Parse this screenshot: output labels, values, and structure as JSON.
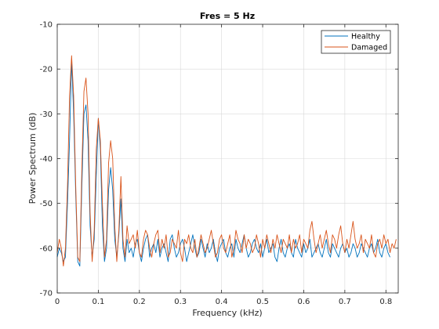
{
  "chart_data": {
    "type": "line",
    "title": "Fres = 5 Hz",
    "xlabel": "Frequency (kHz)",
    "ylabel": "Power Spectrum (dB)",
    "xlim": [
      0,
      0.83
    ],
    "ylim": [
      -70,
      -10
    ],
    "x_ticks": [
      0,
      0.1,
      0.2,
      0.3,
      0.4,
      0.5,
      0.6,
      0.7,
      0.8
    ],
    "x_tick_labels": [
      "0",
      "0.1",
      "0.2",
      "0.3",
      "0.4",
      "0.5",
      "0.6",
      "0.7",
      "0.8"
    ],
    "y_ticks": [
      -70,
      -60,
      -50,
      -40,
      -30,
      -20,
      -10
    ],
    "y_tick_labels": [
      "-70",
      "-60",
      "-50",
      "-40",
      "-30",
      "-20",
      "-10"
    ],
    "grid": true,
    "legend_position": "top-right",
    "x_step": 0.005,
    "series": [
      {
        "name": "Healthy",
        "color": "#0072BD",
        "values": [
          -62,
          -60,
          -61,
          -63,
          -62,
          -50,
          -36,
          -18,
          -30,
          -48,
          -63,
          -64,
          -46,
          -30,
          -28,
          -36,
          -55,
          -62,
          -58,
          -44,
          -31,
          -38,
          -55,
          -63,
          -60,
          -47,
          -42,
          -47,
          -58,
          -62,
          -57,
          -49,
          -60,
          -63,
          -58,
          -61,
          -60,
          -62,
          -59,
          -58,
          -61,
          -63,
          -60,
          -58,
          -57,
          -62,
          -60,
          -59,
          -61,
          -58,
          -62,
          -60,
          -59,
          -61,
          -63,
          -58,
          -57,
          -60,
          -62,
          -61,
          -59,
          -58,
          -60,
          -63,
          -61,
          -59,
          -57,
          -60,
          -62,
          -61,
          -58,
          -60,
          -62,
          -59,
          -61,
          -60,
          -58,
          -61,
          -63,
          -60,
          -59,
          -58,
          -61,
          -62,
          -60,
          -59,
          -62,
          -58,
          -60,
          -61,
          -59,
          -57,
          -60,
          -62,
          -61,
          -59,
          -58,
          -60,
          -61,
          -59,
          -62,
          -60,
          -58,
          -61,
          -60,
          -59,
          -62,
          -63,
          -60,
          -58,
          -61,
          -62,
          -60,
          -59,
          -61,
          -62,
          -58,
          -60,
          -61,
          -62,
          -59,
          -61,
          -60,
          -58,
          -62,
          -61,
          -60,
          -59,
          -61,
          -62,
          -60,
          -58,
          -61,
          -62,
          -59,
          -60,
          -61,
          -62,
          -60,
          -59,
          -61,
          -60,
          -62,
          -61,
          -59,
          -60,
          -62,
          -61,
          -59,
          -60,
          -61,
          -62,
          -60,
          -59,
          -61,
          -60,
          -58,
          -61,
          -62,
          -60,
          -59,
          -61,
          -62
        ]
      },
      {
        "name": "Damaged",
        "color": "#D95319",
        "values": [
          -61,
          -58,
          -60,
          -64,
          -60,
          -46,
          -26,
          -17,
          -26,
          -46,
          -62,
          -63,
          -42,
          -25,
          -22,
          -30,
          -52,
          -63,
          -56,
          -38,
          -31,
          -36,
          -50,
          -62,
          -58,
          -41,
          -36,
          -40,
          -55,
          -63,
          -56,
          -44,
          -58,
          -62,
          -55,
          -59,
          -58,
          -57,
          -60,
          -56,
          -61,
          -62,
          -58,
          -56,
          -57,
          -60,
          -62,
          -59,
          -57,
          -56,
          -61,
          -58,
          -60,
          -57,
          -62,
          -61,
          -58,
          -59,
          -60,
          -56,
          -61,
          -63,
          -58,
          -59,
          -57,
          -60,
          -61,
          -58,
          -62,
          -60,
          -57,
          -59,
          -61,
          -60,
          -58,
          -56,
          -59,
          -62,
          -61,
          -58,
          -57,
          -60,
          -61,
          -59,
          -57,
          -62,
          -60,
          -56,
          -58,
          -59,
          -61,
          -57,
          -60,
          -58,
          -59,
          -61,
          -60,
          -57,
          -59,
          -62,
          -58,
          -60,
          -57,
          -59,
          -61,
          -58,
          -60,
          -57,
          -59,
          -61,
          -58,
          -59,
          -60,
          -57,
          -61,
          -58,
          -60,
          -59,
          -57,
          -61,
          -58,
          -59,
          -60,
          -56,
          -54,
          -58,
          -61,
          -59,
          -57,
          -60,
          -58,
          -56,
          -59,
          -61,
          -57,
          -58,
          -60,
          -57,
          -55,
          -59,
          -61,
          -58,
          -60,
          -57,
          -54,
          -58,
          -60,
          -59,
          -57,
          -61,
          -58,
          -59,
          -60,
          -57,
          -61,
          -62,
          -59,
          -58,
          -60,
          -57,
          -59,
          -58,
          -61,
          -59,
          -60,
          -58
        ]
      }
    ]
  }
}
